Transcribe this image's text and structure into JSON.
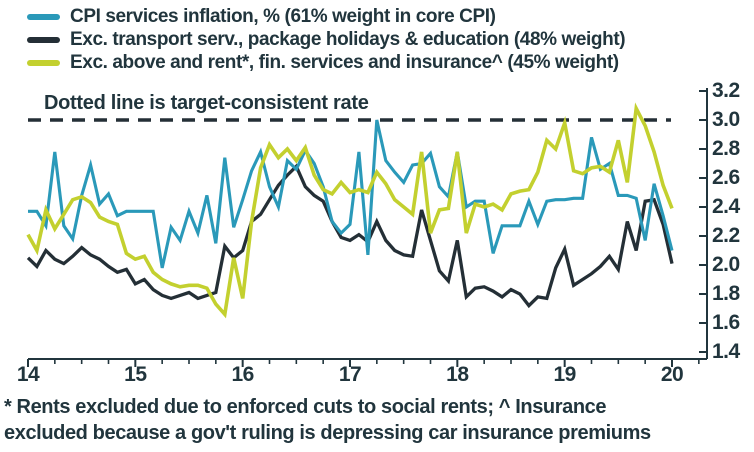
{
  "legend": {
    "items": [
      {
        "label": "CPI services inflation, % (61% weight in core CPI)",
        "color": "#2a99b9"
      },
      {
        "label": "Exc. transport serv., package holidays & education (48% weight)",
        "color": "#242f36"
      },
      {
        "label": "Exc. above and rent*, fin. services and insurance^ (45% weight)",
        "color": "#c3d02f"
      }
    ]
  },
  "annotation": "Dotted line is target-consistent rate",
  "footnote": {
    "line1": "* Rents excluded due to enforced cuts to social rents; ^ Insurance",
    "line2": "excluded because a gov't ruling is depressing car insurance premiums"
  },
  "chart_data": {
    "type": "line",
    "x_description": "Monthly, January 2014 to January 2020",
    "x_tick_labels": [
      "14",
      "15",
      "16",
      "17",
      "18",
      "19",
      "20"
    ],
    "y_tick_labels": [
      "3.2",
      "3.0",
      "2.8",
      "2.6",
      "2.4",
      "2.2",
      "2.0",
      "1.8",
      "1.6",
      "1.4"
    ],
    "ylim": [
      1.35,
      3.25
    ],
    "grid": false,
    "legend_position": "top-left",
    "target_line": {
      "value": 3.0,
      "style": "dashed",
      "color": "#242f36",
      "label": "Dotted line is target-consistent rate"
    },
    "series": [
      {
        "name": "CPI services inflation, % (61% weight in core CPI)",
        "color": "#2a99b9",
        "values": [
          2.37,
          2.37,
          2.27,
          2.78,
          2.27,
          2.18,
          2.48,
          2.69,
          2.42,
          2.49,
          2.34,
          2.37,
          2.37,
          2.37,
          2.37,
          1.98,
          2.26,
          2.17,
          2.37,
          2.22,
          2.48,
          2.15,
          2.74,
          2.26,
          2.45,
          2.65,
          2.78,
          2.54,
          2.4,
          2.72,
          2.66,
          2.79,
          2.7,
          2.54,
          2.3,
          2.22,
          2.28,
          2.78,
          2.07,
          3.0,
          2.72,
          2.64,
          2.57,
          2.69,
          2.7,
          2.77,
          2.54,
          2.47,
          2.78,
          2.4,
          2.44,
          2.44,
          2.08,
          2.27,
          2.27,
          2.27,
          2.44,
          2.28,
          2.44,
          2.45,
          2.45,
          2.46,
          2.46,
          2.88,
          2.66,
          2.7,
          2.48,
          2.48,
          2.46,
          2.17,
          2.56,
          2.34,
          2.1
        ]
      },
      {
        "name": "Exc. transport serv., package holidays & education (48% weight)",
        "color": "#242f36",
        "values": [
          2.05,
          1.99,
          2.1,
          2.04,
          2.01,
          2.06,
          2.12,
          2.07,
          2.04,
          1.99,
          1.95,
          1.97,
          1.87,
          1.9,
          1.83,
          1.79,
          1.77,
          1.79,
          1.81,
          1.77,
          1.79,
          1.81,
          2.13,
          2.05,
          2.1,
          2.3,
          2.35,
          2.45,
          2.55,
          2.62,
          2.68,
          2.54,
          2.48,
          2.44,
          2.3,
          2.19,
          2.17,
          2.21,
          2.16,
          2.3,
          2.17,
          2.1,
          2.07,
          2.06,
          2.38,
          2.17,
          1.96,
          1.89,
          2.17,
          1.78,
          1.84,
          1.85,
          1.82,
          1.78,
          1.83,
          1.8,
          1.72,
          1.78,
          1.77,
          1.98,
          2.11,
          1.86,
          1.9,
          1.94,
          1.99,
          2.06,
          1.97,
          2.3,
          2.1,
          2.44,
          2.45,
          2.28,
          2.01
        ]
      },
      {
        "name": "Exc. above and rent*, fin. services and insurance^ (45% weight)",
        "color": "#c3d02f",
        "values": [
          2.21,
          2.1,
          2.38,
          2.25,
          2.35,
          2.45,
          2.47,
          2.43,
          2.33,
          2.3,
          2.28,
          2.08,
          2.04,
          2.06,
          1.95,
          1.9,
          1.87,
          1.85,
          1.86,
          1.86,
          1.84,
          1.73,
          1.66,
          2.05,
          1.77,
          2.3,
          2.67,
          2.83,
          2.74,
          2.8,
          2.72,
          2.81,
          2.62,
          2.52,
          2.49,
          2.57,
          2.5,
          2.52,
          2.5,
          2.64,
          2.56,
          2.45,
          2.4,
          2.35,
          2.78,
          2.22,
          2.38,
          2.39,
          2.78,
          2.22,
          2.42,
          2.4,
          2.42,
          2.38,
          2.49,
          2.51,
          2.52,
          2.64,
          2.86,
          2.8,
          2.98,
          2.65,
          2.63,
          2.67,
          2.68,
          2.64,
          2.86,
          2.57,
          3.08,
          2.96,
          2.78,
          2.55,
          2.39
        ]
      }
    ]
  }
}
